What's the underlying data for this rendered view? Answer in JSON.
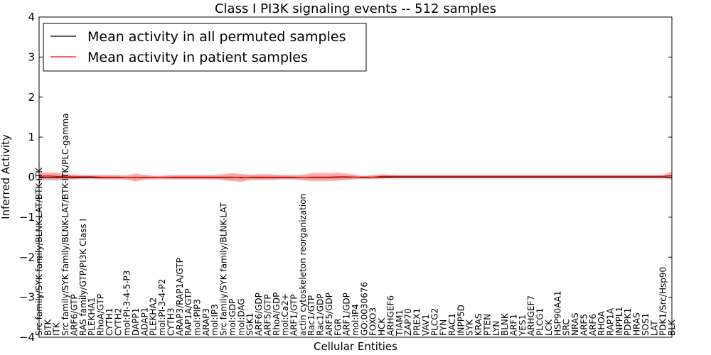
{
  "chart_data": {
    "type": "line",
    "title": "Class I PI3K signaling events -- 512 samples",
    "xlabel": "Cellular Entities",
    "ylabel": "Inferred Activity",
    "ylim": [
      -4,
      4
    ],
    "yticks": [
      -4,
      -3,
      -2,
      -1,
      0,
      1,
      2,
      3,
      4
    ],
    "ytick_labels": [
      "−4",
      "−3",
      "−2",
      "−1",
      "0",
      "1",
      "2",
      "3",
      "4"
    ],
    "legend_position": "top-left",
    "categories": [
      "Src family/SYK family/BLNK-LAT/BTK-ITK",
      "BTK",
      "ITK",
      "Src family/SYK family/BLNK-LAT/BTK-ITK/PLC-gamma",
      "ARF6/GTP",
      "RAS family/GTP/PI3K Class I",
      "PLEKHA1",
      "RhoA/GTP",
      "CYTH1",
      "CYTH2",
      "mol:PI-3-4-5-P3",
      "DAPP1",
      "ADAP1",
      "PLEKHA2",
      "mol:PI-3-4-P2",
      "CYTH3",
      "ARAP3/RAP1A/GTP",
      "RAP1A/GTP",
      "mol:PIP3",
      "ARAP3",
      "mol:IP3",
      "Src family/SYK family/BLNK-LAT",
      "mol:GDP",
      "mol:DAG",
      "SGK1",
      "ARF6/GDP",
      "ARF5/GTP",
      "RhoA/GDP",
      "mol:Ca2+",
      "ARF1/GTP",
      "actin cytoskeleton reorganization",
      "Rac1/GTP",
      "Rac1/GDP",
      "ARF5/GDP",
      "FGR",
      "ARF1/GDP",
      "mol:IP4",
      "GO:0030676",
      "FOXO3",
      "HCK",
      "ARHGEF6",
      "TIAM1",
      "ZAP70",
      "PREX1",
      "VAV1",
      "PLCG2",
      "FYN",
      "RAC1",
      "INPP5D",
      "SYK",
      "KRAS",
      "PTEN",
      "LYN",
      "BLNK",
      "ARF1",
      "YES1",
      "ARHGEF7",
      "PLCG1",
      "LCK",
      "HSP90AA1",
      "SRC",
      "NRAS",
      "ARF5",
      "ARF6",
      "RHOA",
      "RAP1A",
      "INPPL1",
      "PDPK1",
      "HRAS",
      "SOS1",
      "LAT",
      "PDK1/Src/Hsp90",
      "BLK"
    ],
    "series": [
      {
        "name": "Mean activity in all permuted samples",
        "color": "#000000",
        "values": [
          -0.01,
          -0.01,
          -0.01,
          -0.01,
          -0.01,
          -0.01,
          -0.01,
          -0.01,
          -0.01,
          -0.01,
          -0.01,
          -0.01,
          -0.01,
          -0.01,
          -0.01,
          -0.01,
          -0.01,
          -0.01,
          -0.01,
          -0.01,
          -0.01,
          -0.01,
          -0.01,
          -0.01,
          -0.01,
          -0.01,
          -0.01,
          -0.01,
          -0.01,
          -0.01,
          -0.01,
          -0.01,
          -0.01,
          -0.01,
          0.0,
          0.0,
          0.0,
          0.0,
          0.0,
          0.0,
          0.0,
          0.0,
          0.0,
          0.0,
          0.0,
          0.0,
          0.0,
          0.0,
          0.0,
          0.0,
          0.0,
          0.0,
          0.0,
          0.0,
          0.0,
          0.0,
          0.0,
          0.0,
          0.0,
          0.0,
          0.0,
          0.0,
          0.0,
          0.0,
          0.0,
          0.0,
          0.0,
          0.0,
          0.0,
          0.0,
          0.0,
          0.0,
          0.0
        ],
        "band_half_width": [
          0.08,
          0.08,
          0.08,
          0.06,
          0.06,
          0.05,
          0.05,
          0.05,
          0.05,
          0.05,
          0.05,
          0.05,
          0.05,
          0.05,
          0.05,
          0.05,
          0.05,
          0.05,
          0.05,
          0.05,
          0.05,
          0.05,
          0.07,
          0.07,
          0.07,
          0.06,
          0.06,
          0.06,
          0.05,
          0.05,
          0.05,
          0.05,
          0.05,
          0.05,
          0.05,
          0.05,
          0.05,
          0.05,
          0.05,
          0.05,
          0.05,
          0.05,
          0.05,
          0.05,
          0.05,
          0.05,
          0.05,
          0.05,
          0.05,
          0.05,
          0.05,
          0.05,
          0.05,
          0.05,
          0.05,
          0.05,
          0.05,
          0.05,
          0.05,
          0.05,
          0.05,
          0.05,
          0.05,
          0.05,
          0.05,
          0.05,
          0.05,
          0.05,
          0.05,
          0.05,
          0.05,
          0.05,
          0.05
        ]
      },
      {
        "name": "Mean activity in patient samples",
        "color": "#ff0000",
        "values": [
          0.02,
          0.03,
          0.02,
          0.01,
          0.01,
          0.01,
          0.01,
          0.0,
          0.0,
          0.0,
          -0.01,
          -0.01,
          0.0,
          -0.01,
          -0.01,
          0.0,
          0.0,
          0.0,
          0.0,
          0.0,
          0.0,
          0.0,
          0.0,
          -0.02,
          0.0,
          0.0,
          0.0,
          0.0,
          0.0,
          0.0,
          -0.01,
          0.0,
          0.0,
          0.0,
          0.01,
          0.01,
          0.0,
          -0.01,
          0.0,
          0.02,
          0.02,
          0.02,
          0.02,
          0.02,
          0.02,
          0.02,
          0.02,
          0.02,
          0.02,
          0.02,
          0.02,
          0.02,
          0.02,
          0.02,
          0.02,
          0.02,
          0.02,
          0.02,
          0.02,
          0.02,
          0.02,
          0.02,
          0.02,
          0.02,
          0.02,
          0.02,
          0.02,
          0.02,
          0.02,
          0.02,
          0.02,
          0.02,
          0.04
        ],
        "band_half_width": [
          0.08,
          0.09,
          0.09,
          0.06,
          0.06,
          0.04,
          0.04,
          0.05,
          0.05,
          0.05,
          0.05,
          0.1,
          0.06,
          0.04,
          0.04,
          0.05,
          0.05,
          0.05,
          0.05,
          0.05,
          0.05,
          0.08,
          0.1,
          0.1,
          0.06,
          0.07,
          0.07,
          0.06,
          0.05,
          0.05,
          0.07,
          0.1,
          0.1,
          0.1,
          0.1,
          0.08,
          0.05,
          0.03,
          0.05,
          0.05,
          0.04,
          0.03,
          0.03,
          0.03,
          0.03,
          0.03,
          0.03,
          0.03,
          0.03,
          0.03,
          0.03,
          0.03,
          0.03,
          0.03,
          0.03,
          0.03,
          0.03,
          0.03,
          0.03,
          0.03,
          0.03,
          0.03,
          0.03,
          0.03,
          0.03,
          0.03,
          0.03,
          0.03,
          0.03,
          0.03,
          0.03,
          0.03,
          0.1
        ]
      }
    ]
  }
}
